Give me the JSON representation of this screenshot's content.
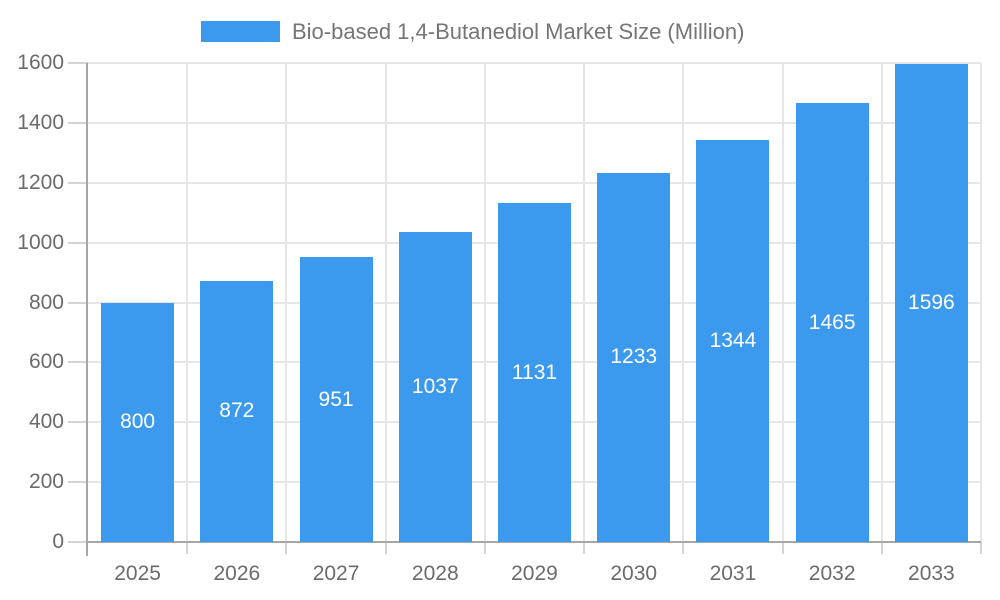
{
  "chart_data": {
    "type": "bar",
    "title": "Bio-based 1,4-Butanediol Market Size (Million)",
    "series_name": "Bio-based 1,4-Butanediol Market Size (Million)",
    "categories": [
      "2025",
      "2026",
      "2027",
      "2028",
      "2029",
      "2030",
      "2031",
      "2032",
      "2033"
    ],
    "values": [
      800,
      872,
      951,
      1037,
      1131,
      1233,
      1344,
      1465,
      1596
    ],
    "xlabel": "",
    "ylabel": "",
    "ylim": [
      0,
      1600
    ],
    "yticks": [
      0,
      200,
      400,
      600,
      800,
      1000,
      1200,
      1400,
      1600
    ],
    "grid": true,
    "legend_position": "top",
    "value_labels": "centered-in-bar",
    "colors": {
      "bar": "#3b99ee",
      "value_label": "#ffffff",
      "axis_line": "#a6a6a6",
      "gridline": "#e6e6e6",
      "tick": "#d4d4d4",
      "tick_label": "#6b6b6b",
      "legend_text": "#757575",
      "background": "#ffffff"
    }
  }
}
